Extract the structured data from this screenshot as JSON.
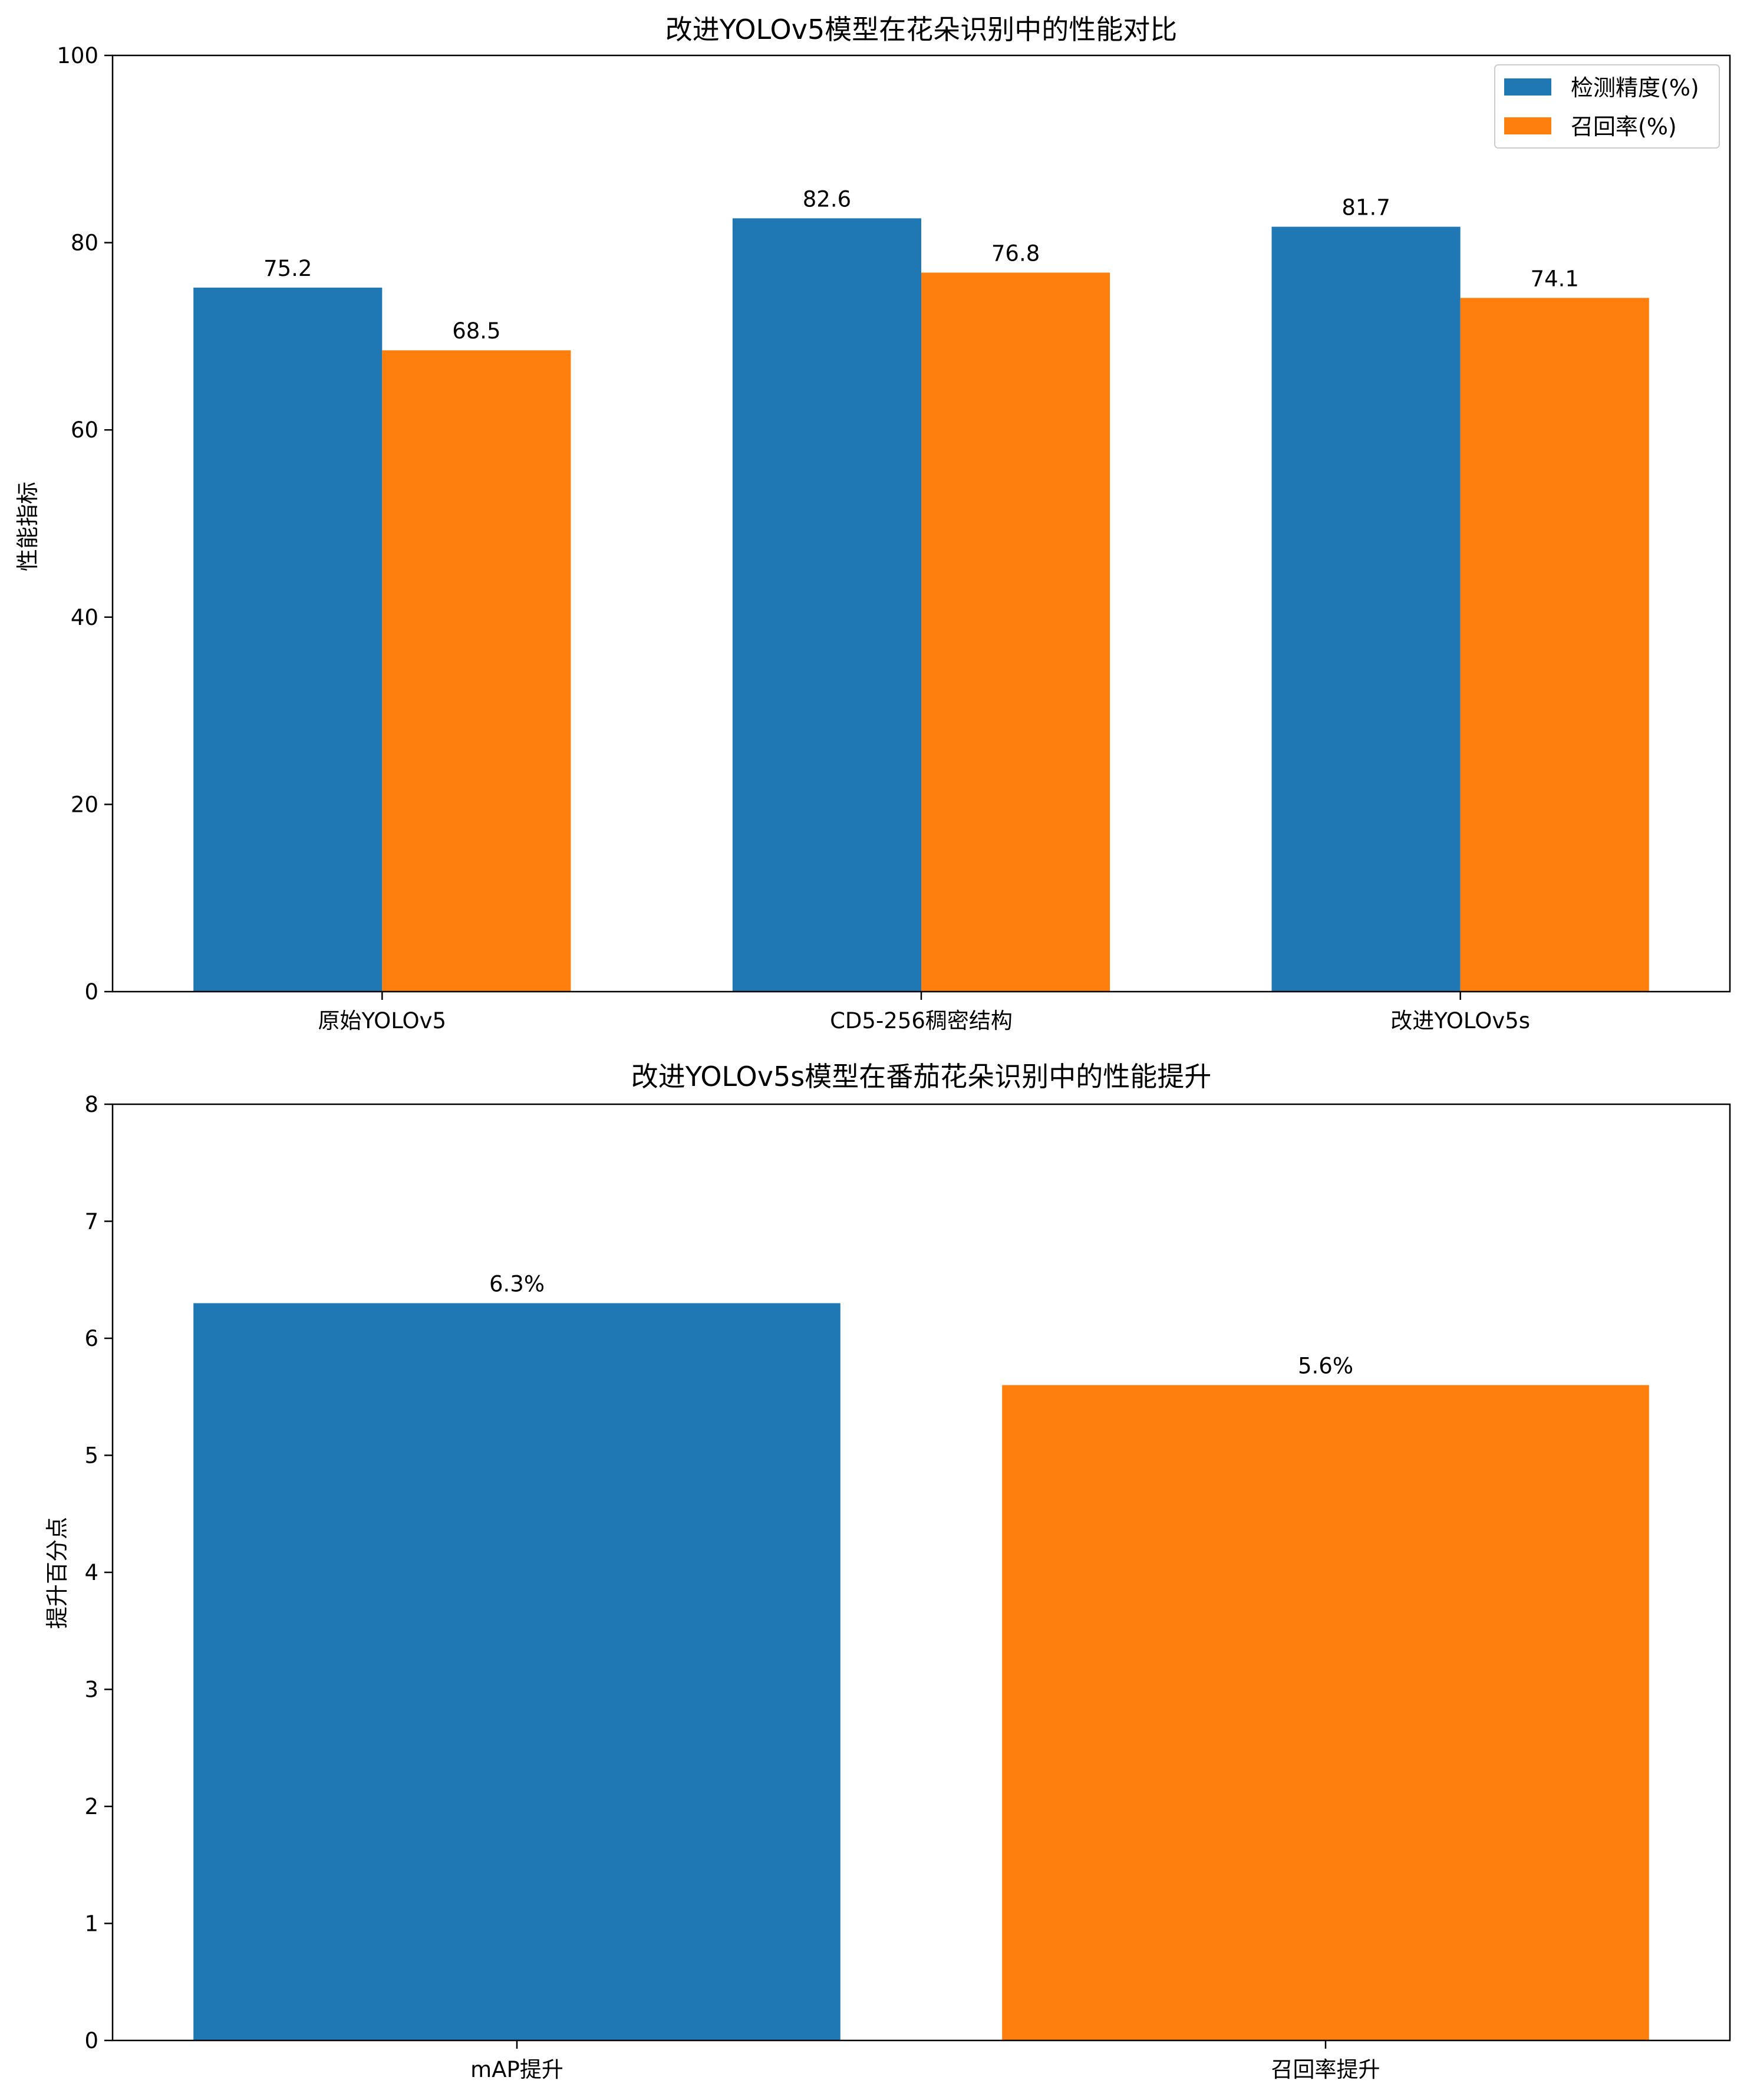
{
  "chart_data": [
    {
      "type": "bar",
      "title": "改进YOLOv5模型在花朵识别中的性能对比",
      "xlabel": "",
      "ylabel": "性能指标",
      "categories": [
        "原始YOLOv5",
        "CD5-256稠密结构",
        "改进YOLOv5s"
      ],
      "series": [
        {
          "name": "检测精度(%)",
          "color": "#1f77b4",
          "values": [
            75.2,
            82.6,
            81.7
          ]
        },
        {
          "name": "召回率(%)",
          "color": "#ff7f0e",
          "values": [
            68.5,
            76.8,
            74.1
          ]
        }
      ],
      "data_labels": [
        [
          "75.2",
          "82.6",
          "81.7"
        ],
        [
          "68.5",
          "76.8",
          "74.1"
        ]
      ],
      "ylim": [
        0,
        100
      ],
      "yticks": [
        0,
        20,
        40,
        60,
        80,
        100
      ],
      "legend": "top-right",
      "grid": false
    },
    {
      "type": "bar",
      "title": "改进YOLOv5s模型在番茄花朵识别中的性能提升",
      "xlabel": "",
      "ylabel": "提升百分点",
      "categories": [
        "mAP提升",
        "召回率提升"
      ],
      "values": [
        6.3,
        5.6
      ],
      "colors": [
        "#1f77b4",
        "#ff7f0e"
      ],
      "data_labels": [
        "6.3%",
        "5.6%"
      ],
      "ylim": [
        0,
        8
      ],
      "yticks": [
        0,
        1,
        2,
        3,
        4,
        5,
        6,
        7,
        8
      ],
      "grid": false
    }
  ]
}
